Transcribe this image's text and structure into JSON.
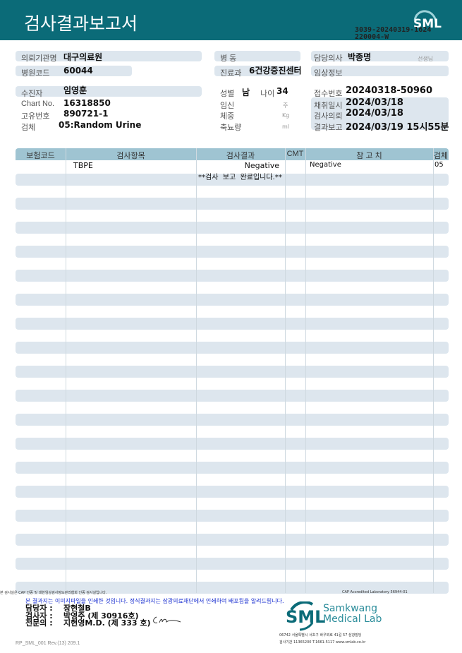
{
  "header": {
    "title": "검사결과보고서",
    "logo": "SML",
    "doc_no_1": "3039-20240319-1624",
    "doc_no_2": "220004-W"
  },
  "info": {
    "requester_label": "의뢰기관명",
    "requester": "대구의료원",
    "hospital_code_label": "병원코드",
    "hospital_code": "60044",
    "ward_label": "병 동",
    "ward": "",
    "dept_label": "진료과",
    "dept": "6건강증진센터",
    "doctor_label": "담당의사",
    "doctor": "박종명",
    "doctor_suffix": "선생님",
    "clinical_label": "임상정보",
    "clinical": "",
    "patient_label": "수진자",
    "patient": "임영훈",
    "chart_label": "Chart No.",
    "chart": "16318850",
    "unique_label": "고유번호",
    "unique": "890721-1",
    "specimen_label": "검체",
    "specimen": "05:Random Urine",
    "sex_label": "성별",
    "sex": "남",
    "age_label": "나이",
    "age": "34",
    "pregnancy_label": "임신",
    "pregnancy_unit": "주",
    "weight_label": "체중",
    "weight_unit": "Kg",
    "urine_label": "축뇨량",
    "urine_unit": "ml",
    "receipt_label": "접수번호",
    "receipt": "20240318-50960",
    "collect_label": "채취일시",
    "collect": "2024/03/18",
    "request_label": "검사의뢰",
    "request": "2024/03/18",
    "report_label": "결과보고",
    "report": "2024/03/19 15시55분"
  },
  "table": {
    "columns": [
      "보험코드",
      "검사항목",
      "검사결과",
      "CMT",
      "참 고 치",
      "검체"
    ],
    "rows": [
      {
        "code": "",
        "item": "TBPE",
        "result": "Negative",
        "cmt": "",
        "ref": "Negative",
        "specimen": "05"
      }
    ],
    "complete_note": "**검사  보고  완료입니다.**"
  },
  "footer": {
    "disclaimer": "본 검사실은 CAP 인증 및 대한임상검사정도관리협회 인증 검사실입니다.",
    "cap": "CAP Accredited Laboratory 56944-01",
    "notice": "본 결과지는 이미지파일을 인쇄한 것입니다. 정식결과지는 삼광의료재단에서 인쇄하여 배포됨을 알려드립니다.",
    "staff_label": "담당자 :",
    "staff": "장현철B",
    "tester_label": "검사자 :",
    "tester": "박영주 (제 30916호)",
    "specialist_label": "전문의 :",
    "specialist": "지현영M.D. (제 333 호)",
    "lab_logo": "SML",
    "lab_name_1": "Samkwang",
    "lab_name_2": "Medical Lab",
    "address": "06742 서울특별시 서초구 바우뫼로 41길 57 삼광빌딩",
    "registration": "검사기관 11365200 T.1661-5117 www.smlab.co.kr",
    "form_id": "RP_SML_001 Rev.(13) 209.1"
  },
  "colors": {
    "header": "#0b6b78",
    "band": "#dde6ee",
    "table_head": "#9fc4d2",
    "notice": "#1a2fd0"
  }
}
